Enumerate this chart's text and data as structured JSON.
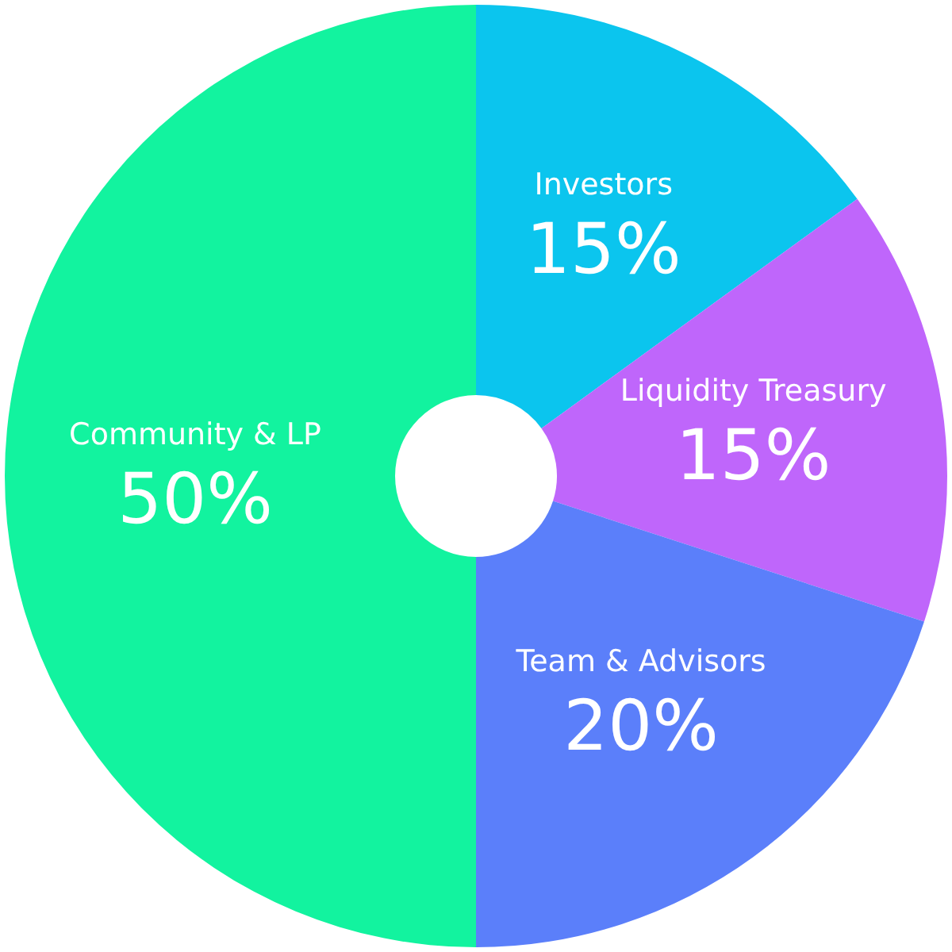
{
  "chart_data": {
    "type": "donut",
    "categories": [
      "Investors",
      "Liquidity Treasury",
      "Team & Advisors",
      "Community & LP"
    ],
    "values": [
      15,
      15,
      20,
      50
    ],
    "colors": [
      "#0bc5ee",
      "#bf66fb",
      "#5b7ffa",
      "#12f39f"
    ],
    "value_labels": [
      "15%",
      "15%",
      "20%",
      "50%"
    ],
    "legend": false
  }
}
